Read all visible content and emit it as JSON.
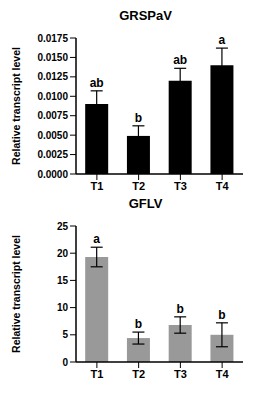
{
  "chart_data": [
    {
      "type": "bar",
      "title": "GRSPaV",
      "y_label": "Relative transcript level",
      "categories": [
        "T1",
        "T2",
        "T3",
        "T4"
      ],
      "values": [
        0.009,
        0.0049,
        0.012,
        0.014
      ],
      "errors": [
        0.0017,
        0.0013,
        0.0016,
        0.0022
      ],
      "annotations": [
        "ab",
        "b",
        "ab",
        "a"
      ],
      "color": "#000000",
      "ylim": [
        0,
        0.0175
      ],
      "yticks": [
        {
          "value": 0,
          "label": "0.0000"
        },
        {
          "value": 0.0025,
          "label": "0.0025"
        },
        {
          "value": 0.005,
          "label": "0.0050"
        },
        {
          "value": 0.0075,
          "label": "0.0075"
        },
        {
          "value": 0.01,
          "label": "0.0100"
        },
        {
          "value": 0.0125,
          "label": "0.0125"
        },
        {
          "value": 0.015,
          "label": "0.0150"
        },
        {
          "value": 0.0175,
          "label": "0.0175"
        }
      ],
      "grid": false
    },
    {
      "type": "bar",
      "title": "GFLV",
      "y_label": "Relative transcript level",
      "categories": [
        "T1",
        "T2",
        "T3",
        "T4"
      ],
      "values": [
        19.3,
        4.4,
        6.8,
        5.0
      ],
      "errors": [
        1.8,
        1.1,
        1.5,
        2.2
      ],
      "annotations": [
        "a",
        "b",
        "b",
        "b"
      ],
      "color": "#999999",
      "ylim": [
        0,
        25
      ],
      "yticks": [
        0,
        5,
        10,
        15,
        20,
        25
      ],
      "grid": false
    }
  ]
}
